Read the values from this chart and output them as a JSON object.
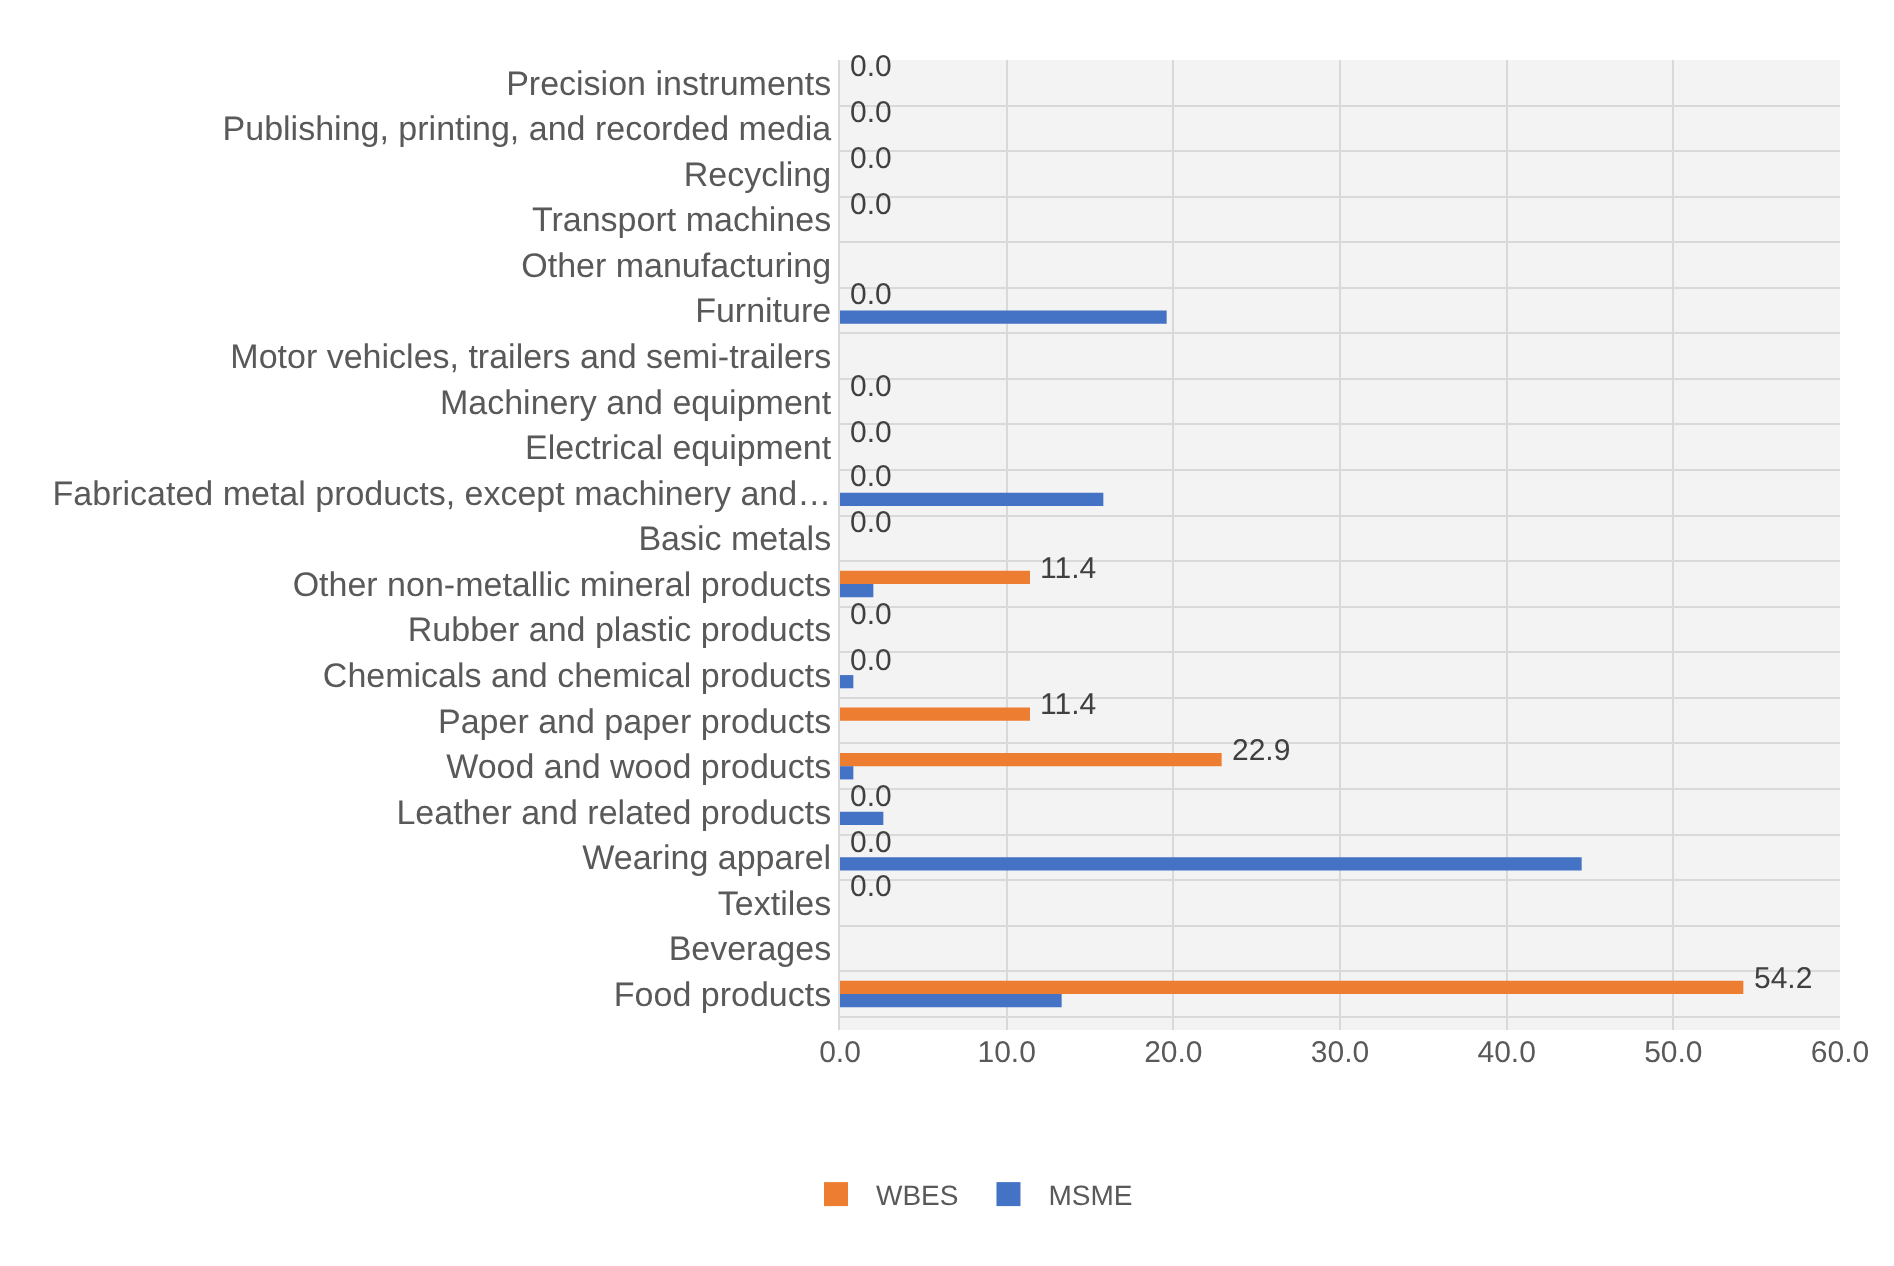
{
  "chart_data": {
    "type": "bar",
    "orientation": "horizontal",
    "categories": [
      "Precision instruments",
      "Publishing, printing, and recorded media",
      "Recycling",
      "Transport machines",
      "Other manufacturing",
      "Furniture",
      "Motor vehicles, trailers and semi-trailers",
      "Machinery and equipment",
      "Electrical equipment",
      "Fabricated metal products, except machinery and…",
      "Basic metals",
      "Other non-metallic mineral products",
      "Rubber and plastic products",
      "Chemicals and chemical products",
      "Paper and paper products",
      "Wood and wood products",
      "Leather and related products",
      "Wearing apparel",
      "Textiles",
      "Beverages",
      "Food products"
    ],
    "series": [
      {
        "name": "WBES",
        "color": "#ed7d31",
        "values": [
          0,
          0,
          0,
          0,
          null,
          0,
          null,
          0,
          0,
          0,
          0,
          11.4,
          0,
          0,
          11.4,
          22.9,
          0,
          0,
          0,
          null,
          54.2
        ],
        "value_labels": [
          "0.0",
          "0.0",
          "0.0",
          "0.0",
          null,
          "0.0",
          null,
          "0.0",
          "0.0",
          "0.0",
          "0.0",
          "11.4",
          "0.0",
          "0.0",
          "11.4",
          "22.9",
          "0.0",
          "0.0",
          "0.0",
          null,
          "54.2"
        ]
      },
      {
        "name": "MSME",
        "color": "#4472c4",
        "values": [
          null,
          null,
          null,
          null,
          null,
          19.6,
          null,
          null,
          null,
          15.8,
          null,
          2.0,
          null,
          0.8,
          null,
          0.8,
          2.6,
          44.5,
          null,
          null,
          13.3
        ]
      }
    ],
    "xlim": [
      0,
      60
    ],
    "xticks": [
      {
        "value": 0,
        "label": "0.0"
      },
      {
        "value": 10,
        "label": "10.0"
      },
      {
        "value": 20,
        "label": "20.0"
      },
      {
        "value": 30,
        "label": "30.0"
      },
      {
        "value": 40,
        "label": "40.0"
      },
      {
        "value": 50,
        "label": "50.0"
      },
      {
        "value": 60,
        "label": "60.0"
      }
    ],
    "grid": true,
    "legend": "bottom"
  }
}
